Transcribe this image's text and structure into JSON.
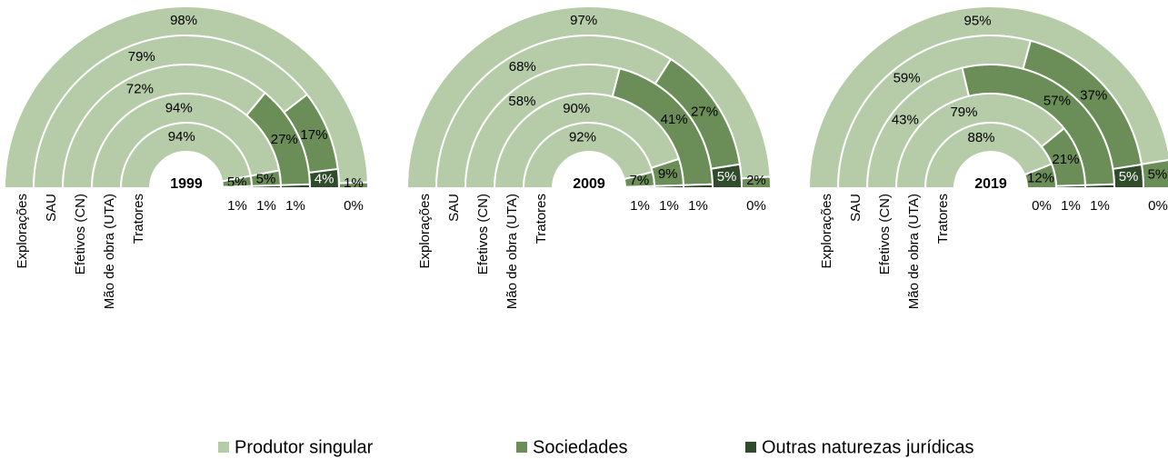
{
  "chart_data": [
    {
      "type": "half-donut",
      "title": "1999",
      "categories": [
        "Explorações",
        "SAU",
        "Efetivos (CN)",
        "Mão de obra (UTA)",
        "Tratores"
      ],
      "series": [
        {
          "name": "Produtor singular",
          "color": "#b6cba8",
          "values": [
            98,
            79,
            72,
            94,
            94
          ],
          "value_labels": [
            "98%",
            "79%",
            "72%",
            "94%",
            "94%"
          ]
        },
        {
          "name": "Sociedades",
          "color": "#6b8e58",
          "values": [
            1,
            17,
            27,
            5,
            5
          ],
          "value_labels": [
            "1%",
            "17%",
            "27%",
            "5%",
            "5%"
          ]
        },
        {
          "name": "Outras naturezas jurídicas",
          "color": "#2f4b2b",
          "values": [
            0,
            4,
            1,
            1,
            1
          ],
          "value_labels": [
            "0%",
            "4%",
            "1%",
            "1%",
            "1%"
          ]
        }
      ]
    },
    {
      "type": "half-donut",
      "title": "2009",
      "categories": [
        "Explorações",
        "SAU",
        "Efetivos (CN)",
        "Mão de obra (UTA)",
        "Tratores"
      ],
      "series": [
        {
          "name": "Produtor singular",
          "color": "#b6cba8",
          "values": [
            97,
            68,
            58,
            90,
            92
          ],
          "value_labels": [
            "97%",
            "68%",
            "58%",
            "90%",
            "92%"
          ]
        },
        {
          "name": "Sociedades",
          "color": "#6b8e58",
          "values": [
            2,
            27,
            41,
            9,
            7
          ],
          "value_labels": [
            "2%",
            "27%",
            "41%",
            "9%",
            "7%"
          ]
        },
        {
          "name": "Outras naturezas jurídicas",
          "color": "#2f4b2b",
          "values": [
            0,
            5,
            1,
            1,
            1
          ],
          "value_labels": [
            "0%",
            "5%",
            "1%",
            "1%",
            "1%"
          ]
        }
      ]
    },
    {
      "type": "half-donut",
      "title": "2019",
      "categories": [
        "Explorações",
        "SAU",
        "Efetivos (CN)",
        "Mão de obra (UTA)",
        "Tratores"
      ],
      "series": [
        {
          "name": "Produtor singular",
          "color": "#b6cba8",
          "values": [
            95,
            59,
            43,
            79,
            88
          ],
          "value_labels": [
            "95%",
            "59%",
            "43%",
            "79%",
            "88%"
          ]
        },
        {
          "name": "Sociedades",
          "color": "#6b8e58",
          "values": [
            5,
            37,
            57,
            21,
            12
          ],
          "value_labels": [
            "5%",
            "37%",
            "57%",
            "21%",
            "12%"
          ]
        },
        {
          "name": "Outras naturezas jurídicas",
          "color": "#2f4b2b",
          "values": [
            0,
            5,
            1,
            1,
            0
          ],
          "value_labels": [
            "0%",
            "5%",
            "1%",
            "1%",
            "0%"
          ]
        }
      ]
    }
  ]
}
